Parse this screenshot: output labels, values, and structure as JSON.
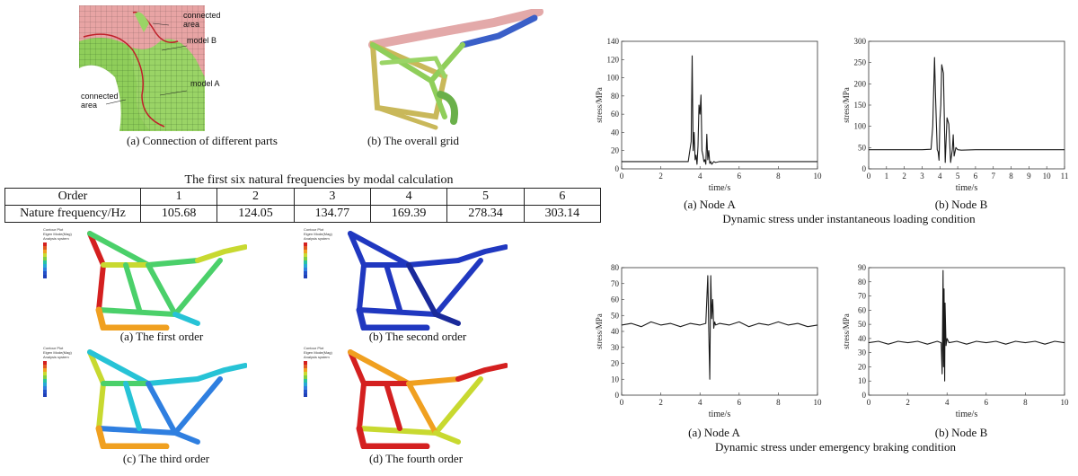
{
  "mesh_figures": {
    "connection": {
      "caption": "(a) Connection of different parts",
      "labels": [
        "connected area",
        "model B",
        "model A",
        "connected area"
      ]
    },
    "overall": {
      "caption": "(b) The overall grid"
    }
  },
  "table": {
    "title": "The first six natural frequencies by modal calculation",
    "header_label": "Order",
    "orders": [
      "1",
      "2",
      "3",
      "4",
      "5",
      "6"
    ],
    "row_label": "Nature frequency/Hz",
    "frequencies": [
      "105.68",
      "124.05",
      "134.77",
      "169.39",
      "278.34",
      "303.14"
    ]
  },
  "mode_shapes": [
    {
      "caption": "(a) The first order",
      "palette": "mixed"
    },
    {
      "caption": "(b) The second order",
      "palette": "blue"
    },
    {
      "caption": "(c) The third order",
      "palette": "mixed"
    },
    {
      "caption": "(d) The fourth order",
      "palette": "mixed"
    }
  ],
  "contour_legend": [
    "Contour Plot",
    "Eigen Mode(Mag)",
    "Analysis system"
  ],
  "stress_groups": [
    {
      "title": "Dynamic stress under instantaneous loading condition"
    },
    {
      "title": "Dynamic stress under emergency braking condition"
    }
  ],
  "colors": {
    "curve": "#1a1a1a",
    "axis": "#333333",
    "mesh_green": "#8fce5a",
    "mesh_pink": "#e8a4a4",
    "frame_blue": "#3a5fc8"
  },
  "chart_data": [
    {
      "type": "line",
      "title": "",
      "caption": "(a) Node A",
      "xlabel": "time/s",
      "ylabel": "stress/MPa",
      "xlim": [
        0,
        10
      ],
      "ylim": [
        0,
        140
      ],
      "xticks": [
        0,
        2,
        4,
        6,
        8,
        10
      ],
      "yticks": [
        0,
        20,
        40,
        60,
        80,
        100,
        120,
        140
      ],
      "x": [
        0,
        0.5,
        1,
        1.5,
        2,
        2.5,
        3,
        3.4,
        3.55,
        3.6,
        3.65,
        3.7,
        3.75,
        3.8,
        3.85,
        3.9,
        3.95,
        4.0,
        4.05,
        4.1,
        4.15,
        4.2,
        4.25,
        4.3,
        4.35,
        4.4,
        4.45,
        4.5,
        4.55,
        4.6,
        4.7,
        4.8,
        5,
        5.5,
        6,
        7,
        8,
        9,
        10
      ],
      "y": [
        8,
        8,
        8,
        8,
        8,
        8,
        8,
        8,
        30,
        124,
        20,
        40,
        10,
        15,
        5,
        25,
        70,
        60,
        81,
        20,
        15,
        8,
        10,
        5,
        38,
        10,
        20,
        6,
        8,
        5,
        8,
        7,
        8,
        8,
        8,
        8,
        8,
        8,
        8
      ]
    },
    {
      "type": "line",
      "title": "",
      "caption": "(b) Node B",
      "xlabel": "time/s",
      "ylabel": "stress/MPa",
      "xlim": [
        0,
        11
      ],
      "ylim": [
        0,
        300
      ],
      "xticks": [
        0,
        1,
        2,
        3,
        4,
        5,
        6,
        7,
        8,
        9,
        10,
        11
      ],
      "yticks": [
        0,
        50,
        100,
        150,
        200,
        250,
        300
      ],
      "x": [
        0,
        1,
        2,
        3,
        3.5,
        3.6,
        3.7,
        3.75,
        3.8,
        3.85,
        3.9,
        3.95,
        4.0,
        4.05,
        4.1,
        4.2,
        4.3,
        4.4,
        4.5,
        4.6,
        4.7,
        4.75,
        4.8,
        4.9,
        5.0,
        5.2,
        6,
        7,
        8,
        9,
        10,
        11
      ],
      "y": [
        45,
        45,
        45,
        45,
        46,
        100,
        262,
        180,
        110,
        45,
        40,
        20,
        115,
        150,
        245,
        225,
        15,
        120,
        105,
        15,
        45,
        80,
        30,
        50,
        45,
        44,
        45,
        45,
        45,
        45,
        45,
        45
      ]
    },
    {
      "type": "line",
      "title": "",
      "caption": "(a) Node A",
      "xlabel": "time/s",
      "ylabel": "stress/MPa",
      "xlim": [
        0,
        10
      ],
      "ylim": [
        0,
        80
      ],
      "xticks": [
        0,
        2,
        4,
        6,
        8,
        10
      ],
      "yticks": [
        0,
        10,
        20,
        30,
        40,
        50,
        60,
        70,
        80
      ],
      "x": [
        0,
        0.5,
        1,
        1.5,
        2,
        2.5,
        3,
        3.5,
        4,
        4.3,
        4.4,
        4.45,
        4.5,
        4.55,
        4.6,
        4.65,
        4.7,
        4.75,
        4.8,
        5,
        5.5,
        6,
        6.5,
        7,
        7.5,
        8,
        8.5,
        9,
        9.5,
        10
      ],
      "y": [
        44,
        45,
        43,
        46,
        44,
        45,
        43,
        45,
        44,
        45,
        75,
        40,
        10,
        75,
        48,
        60,
        42,
        46,
        44,
        45,
        44,
        46,
        43,
        45,
        44,
        46,
        44,
        45,
        43,
        44
      ]
    },
    {
      "type": "line",
      "title": "",
      "caption": "(b) Node B",
      "xlabel": "time/s",
      "ylabel": "stress/MPa",
      "xlim": [
        0,
        10
      ],
      "ylim": [
        0,
        90
      ],
      "xticks": [
        0,
        2,
        4,
        6,
        8,
        10
      ],
      "yticks": [
        0,
        10,
        20,
        30,
        40,
        50,
        60,
        70,
        80,
        90
      ],
      "x": [
        0,
        0.5,
        1,
        1.5,
        2,
        2.5,
        3,
        3.5,
        3.7,
        3.75,
        3.8,
        3.82,
        3.85,
        3.88,
        3.9,
        3.95,
        4.0,
        4.1,
        4.5,
        5,
        5.5,
        6,
        6.5,
        7,
        7.5,
        8,
        8.5,
        9,
        9.5,
        10
      ],
      "y": [
        37,
        38,
        36,
        38,
        37,
        38,
        36,
        38,
        37,
        15,
        88,
        20,
        75,
        10,
        65,
        35,
        40,
        37,
        38,
        36,
        38,
        37,
        38,
        36,
        38,
        37,
        38,
        36,
        38,
        37
      ]
    }
  ]
}
